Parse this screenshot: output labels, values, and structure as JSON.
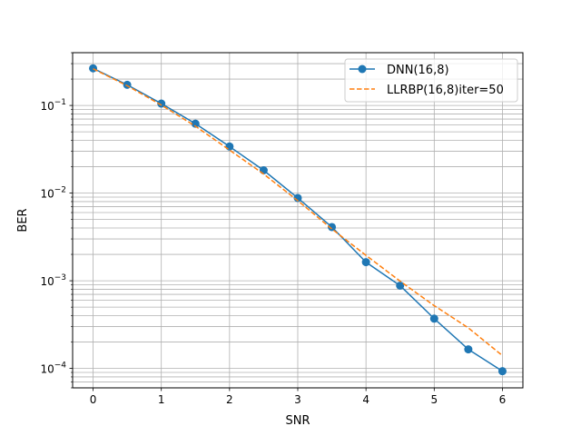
{
  "chart_data": {
    "type": "line",
    "title": "",
    "xlabel": "SNR",
    "ylabel": "BER",
    "xlim": [
      -0.3,
      6.3
    ],
    "ylim": [
      6e-05,
      0.4
    ],
    "yscale": "log",
    "grid": "major and minor",
    "legend_position": "top-right",
    "x_ticks": [
      "0",
      "1",
      "2",
      "3",
      "4",
      "5",
      "6"
    ],
    "y_ticks": [
      {
        "value": 0.0001,
        "mantissa": "10",
        "exp": "−4"
      },
      {
        "value": 0.001,
        "mantissa": "10",
        "exp": "−3"
      },
      {
        "value": 0.01,
        "mantissa": "10",
        "exp": "−2"
      },
      {
        "value": 0.1,
        "mantissa": "10",
        "exp": "−1"
      }
    ],
    "series": [
      {
        "name": "DNN(16,8)",
        "color": "#1f77b4",
        "style": "solid",
        "marker": "circle",
        "x": [
          0,
          0.5,
          1,
          1.5,
          2,
          2.5,
          3,
          3.5,
          4,
          4.5,
          5,
          5.5,
          6
        ],
        "y": [
          0.265,
          0.172,
          0.105,
          0.062,
          0.034,
          0.0182,
          0.0088,
          0.0041,
          0.00163,
          0.00088,
          0.00037,
          0.000165,
          9.3e-05
        ]
      },
      {
        "name": "LLRBP(16,8)iter=50",
        "color": "#ff7f0e",
        "style": "dashed",
        "marker": "none",
        "x": [
          0,
          0.5,
          1,
          1.5,
          2,
          2.5,
          3,
          3.5,
          4,
          4.5,
          5,
          5.5,
          6
        ],
        "y": [
          0.262,
          0.168,
          0.101,
          0.058,
          0.031,
          0.0165,
          0.0082,
          0.0039,
          0.00195,
          0.00099,
          0.00052,
          0.00029,
          0.00014
        ]
      }
    ]
  }
}
